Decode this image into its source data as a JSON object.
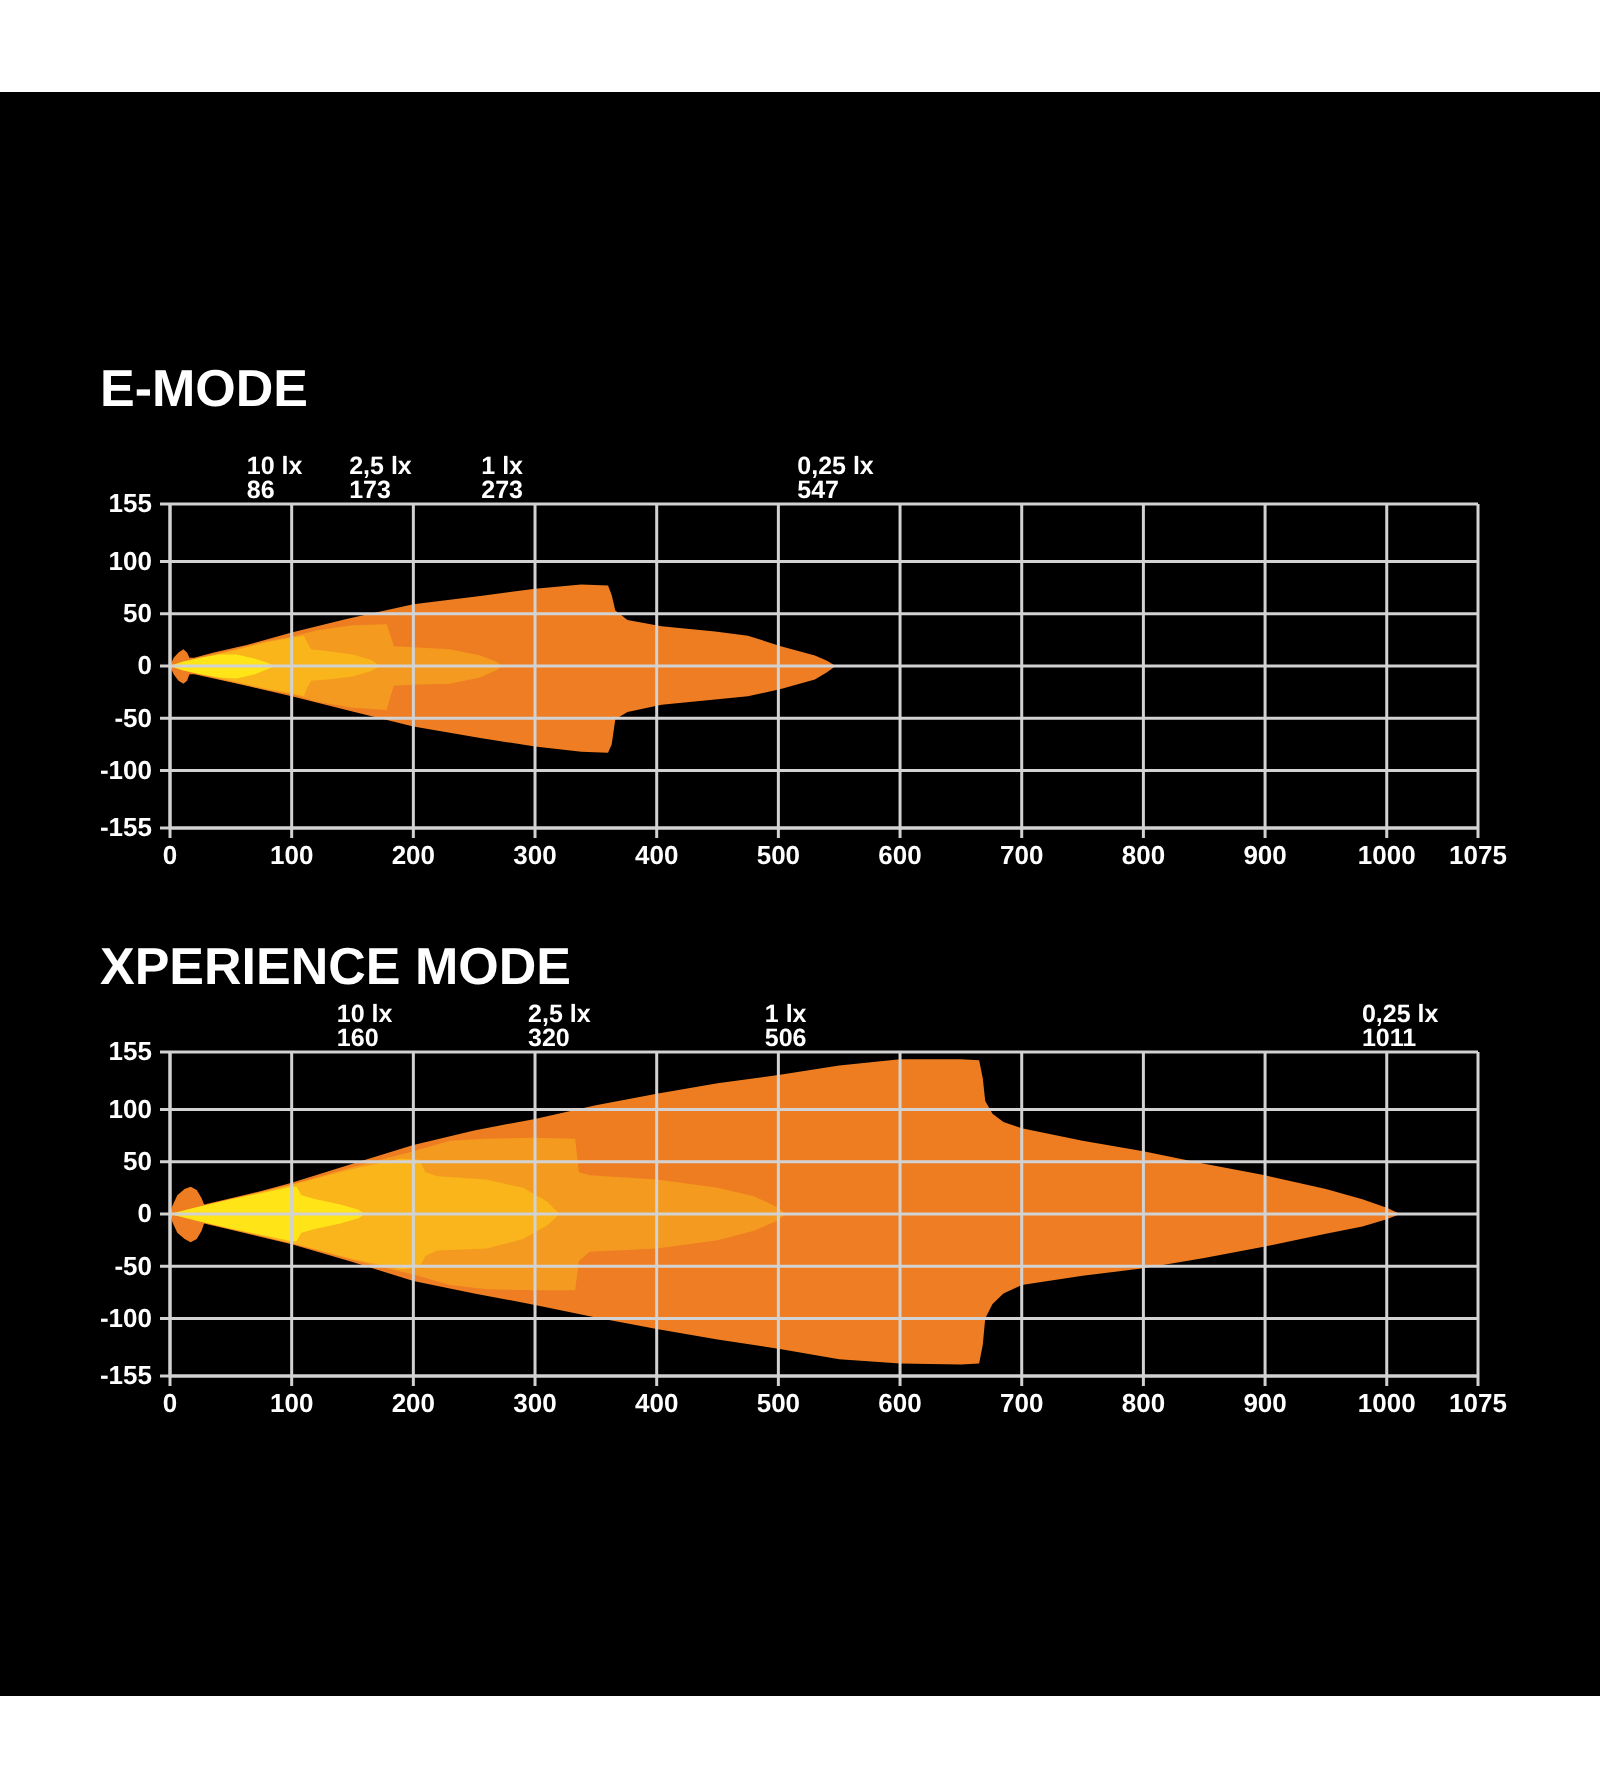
{
  "chart_data": [
    {
      "type": "area",
      "title": "E-MODE",
      "xlim": [
        0,
        1075
      ],
      "ylim": [
        -155,
        155
      ],
      "xticks": [
        0,
        100,
        200,
        300,
        400,
        500,
        600,
        700,
        800,
        900,
        1000,
        1075
      ],
      "yticks": [
        -155,
        -100,
        -50,
        0,
        50,
        100,
        155
      ],
      "grid": true,
      "annotations": [
        "10 lx",
        "86",
        "2,5 lx",
        "173",
        "1 lx",
        "273",
        "0,25 lx",
        "547"
      ],
      "series": [
        {
          "color": "#ee7d22",
          "x": [
            0,
            3,
            7,
            11,
            14,
            16,
            20,
            36,
            63,
            100,
            145,
            200,
            255,
            300,
            338,
            360,
            363,
            366,
            376,
            404,
            448,
            475,
            502,
            530,
            540,
            547
          ],
          "values": [
            0,
            8,
            13,
            16,
            13,
            8,
            8,
            13,
            20,
            32,
            45,
            59,
            67,
            74,
            78,
            77,
            68,
            53,
            44,
            38,
            33,
            29,
            19,
            10,
            5,
            0
          ]
        },
        {
          "color": "#ee7d23",
          "x": [
            0,
            3,
            7,
            11,
            14,
            16,
            20,
            36,
            63,
            100,
            145,
            200,
            255,
            300,
            338,
            360,
            363,
            366,
            376,
            404,
            448,
            475,
            502,
            530,
            540,
            547
          ],
          "values": [
            0,
            -8,
            -14,
            -17,
            -14,
            -8,
            -8,
            -12,
            -19,
            -29,
            -42,
            -58,
            -69,
            -77,
            -82,
            -83,
            -75,
            -51,
            -44,
            -37,
            -32,
            -29,
            -22,
            -13,
            -6,
            0
          ]
        },
        {
          "color": "#f49a1f",
          "x": [
            0,
            20,
            50,
            80,
            100,
            120,
            150,
            178,
            181,
            184,
            200,
            230,
            255,
            268,
            273
          ],
          "values": [
            0,
            7,
            15,
            24,
            28,
            34,
            39,
            40,
            30,
            19,
            18,
            16,
            10,
            4,
            0
          ]
        },
        {
          "color": "#f49a20",
          "x": [
            0,
            20,
            50,
            80,
            100,
            120,
            150,
            178,
            181,
            184,
            200,
            230,
            255,
            268,
            273
          ],
          "values": [
            0,
            -7,
            -15,
            -23,
            -27,
            -34,
            -40,
            -42,
            -30,
            -19,
            -18,
            -17,
            -11,
            -4,
            0
          ]
        },
        {
          "color": "#f9b51a",
          "x": [
            0,
            20,
            50,
            80,
            100,
            110,
            113,
            116,
            130,
            150,
            165,
            173
          ],
          "values": [
            0,
            6,
            14,
            23,
            27,
            29,
            22,
            16,
            14,
            11,
            6,
            0
          ]
        },
        {
          "color": "#f9b51b",
          "x": [
            0,
            20,
            50,
            80,
            100,
            110,
            113,
            116,
            130,
            150,
            165,
            173
          ],
          "values": [
            0,
            -6,
            -14,
            -22,
            -26,
            -29,
            -20,
            -14,
            -13,
            -10,
            -5,
            0
          ]
        },
        {
          "color": "#ffe417",
          "x": [
            0,
            10,
            25,
            40,
            55,
            70,
            80,
            86
          ],
          "values": [
            0,
            4,
            8,
            11,
            11,
            7,
            3,
            0
          ]
        },
        {
          "color": "#ffe418",
          "x": [
            0,
            10,
            25,
            40,
            55,
            70,
            80,
            86
          ],
          "values": [
            0,
            -4,
            -8,
            -11,
            -12,
            -8,
            -3,
            0
          ]
        }
      ]
    },
    {
      "type": "area",
      "title": "XPERIENCE MODE",
      "xlim": [
        0,
        1075
      ],
      "ylim": [
        -155,
        155
      ],
      "xticks": [
        0,
        100,
        200,
        300,
        400,
        500,
        600,
        700,
        800,
        900,
        1000,
        1075
      ],
      "yticks": [
        -155,
        -100,
        -50,
        0,
        50,
        100,
        155
      ],
      "grid": true,
      "annotations": [
        "10 lx",
        "160",
        "2,5 lx",
        "320",
        "1 lx",
        "506",
        "0,25 lx",
        "1011"
      ],
      "series": [
        {
          "color": "#ee7d22",
          "x": [
            0,
            2,
            6,
            12,
            17,
            22,
            26,
            28,
            35,
            50,
            75,
            100,
            150,
            200,
            250,
            300,
            350,
            400,
            450,
            500,
            550,
            600,
            650,
            665,
            668,
            670,
            676,
            685,
            700,
            750,
            800,
            850,
            900,
            950,
            980,
            1000,
            1011
          ],
          "values": [
            0,
            8,
            18,
            24,
            26,
            23,
            15,
            9,
            11,
            15,
            22,
            30,
            48,
            66,
            80,
            91,
            104,
            115,
            125,
            133,
            142,
            148,
            148,
            147,
            130,
            108,
            96,
            88,
            82,
            70,
            60,
            48,
            37,
            24,
            14,
            6,
            0
          ]
        },
        {
          "color": "#ee7d23",
          "x": [
            0,
            2,
            6,
            12,
            17,
            22,
            26,
            28,
            35,
            50,
            75,
            100,
            150,
            200,
            250,
            300,
            350,
            400,
            450,
            500,
            550,
            600,
            650,
            665,
            668,
            670,
            676,
            685,
            700,
            750,
            800,
            850,
            900,
            950,
            980,
            1000,
            1011
          ],
          "values": [
            0,
            -8,
            -18,
            -24,
            -27,
            -24,
            -16,
            -9,
            -11,
            -15,
            -22,
            -29,
            -46,
            -64,
            -76,
            -87,
            -99,
            -110,
            -120,
            -129,
            -139,
            -143,
            -144,
            -143,
            -125,
            -100,
            -86,
            -76,
            -68,
            -59,
            -52,
            -42,
            -31,
            -19,
            -12,
            -5,
            0
          ]
        },
        {
          "color": "#f49a1f",
          "x": [
            0,
            50,
            100,
            150,
            200,
            230,
            260,
            300,
            333,
            336,
            345,
            400,
            450,
            480,
            500,
            506
          ],
          "values": [
            0,
            14,
            28,
            45,
            60,
            70,
            72,
            73,
            72,
            40,
            37,
            33,
            25,
            17,
            6,
            0
          ]
        },
        {
          "color": "#f49a20",
          "x": [
            0,
            50,
            100,
            150,
            200,
            230,
            260,
            300,
            333,
            336,
            345,
            400,
            450,
            480,
            500,
            506
          ],
          "values": [
            0,
            -14,
            -28,
            -44,
            -58,
            -68,
            -72,
            -73,
            -73,
            -45,
            -36,
            -33,
            -25,
            -16,
            -6,
            0
          ]
        },
        {
          "color": "#f9b51a",
          "x": [
            0,
            50,
            100,
            150,
            190,
            205,
            210,
            220,
            260,
            290,
            310,
            320
          ],
          "values": [
            0,
            14,
            28,
            43,
            53,
            52,
            40,
            36,
            33,
            25,
            12,
            0
          ]
        },
        {
          "color": "#f9b51b",
          "x": [
            0,
            50,
            100,
            150,
            190,
            205,
            210,
            220,
            260,
            290,
            310,
            320
          ],
          "values": [
            0,
            -14,
            -28,
            -43,
            -53,
            -51,
            -40,
            -35,
            -33,
            -24,
            -11,
            0
          ]
        },
        {
          "color": "#ffe417",
          "x": [
            0,
            20,
            50,
            80,
            100,
            104,
            108,
            120,
            140,
            155,
            160
          ],
          "values": [
            0,
            6,
            14,
            21,
            26,
            26,
            18,
            14,
            9,
            4,
            0
          ]
        },
        {
          "color": "#ffe418",
          "x": [
            0,
            20,
            50,
            80,
            100,
            104,
            108,
            120,
            140,
            155,
            160
          ],
          "values": [
            0,
            -6,
            -14,
            -21,
            -26,
            -26,
            -18,
            -14,
            -9,
            -4,
            0
          ]
        }
      ]
    }
  ]
}
